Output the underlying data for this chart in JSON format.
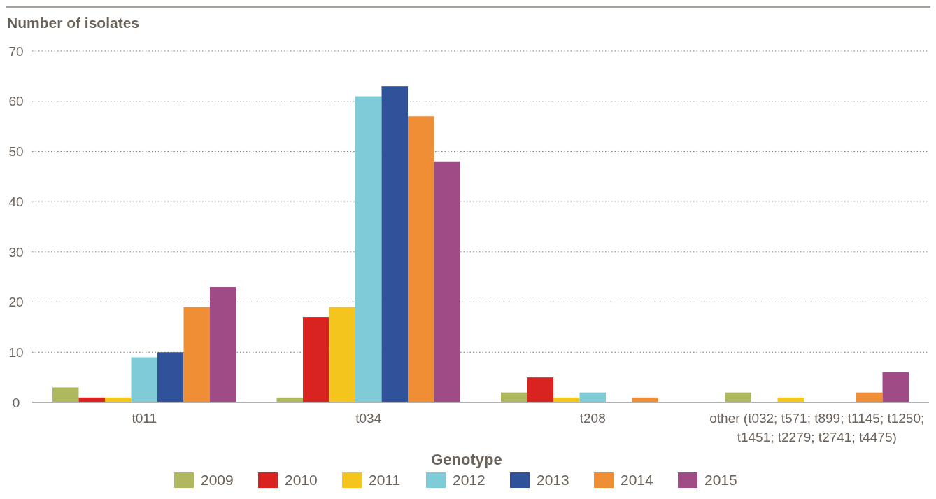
{
  "chart_data": {
    "type": "bar",
    "ylabel": "Number of isolates",
    "xlabel": "Genotype",
    "categories": [
      "t011",
      "t034",
      "t208",
      "other (t032; t571; t899; t1145; t1250; t1451; t2279; t2741; t4475)"
    ],
    "series": [
      {
        "name": "2009",
        "color": "#b0b85e",
        "values": [
          3,
          1,
          2,
          2
        ]
      },
      {
        "name": "2010",
        "color": "#d92320",
        "values": [
          1,
          17,
          5,
          0
        ]
      },
      {
        "name": "2011",
        "color": "#f4c51d",
        "values": [
          1,
          19,
          1,
          1
        ]
      },
      {
        "name": "2012",
        "color": "#80cbd8",
        "values": [
          9,
          61,
          2,
          0
        ]
      },
      {
        "name": "2013",
        "color": "#2f529a",
        "values": [
          10,
          63,
          0,
          0
        ]
      },
      {
        "name": "2014",
        "color": "#ef8e35",
        "values": [
          19,
          57,
          1,
          2
        ]
      },
      {
        "name": "2015",
        "color": "#9e4b86",
        "values": [
          23,
          48,
          0,
          6
        ]
      }
    ],
    "ylim": [
      0,
      70
    ],
    "yticks": [
      0,
      10,
      20,
      30,
      40,
      50,
      60,
      70
    ],
    "grid": "y",
    "legend": "bottom"
  }
}
